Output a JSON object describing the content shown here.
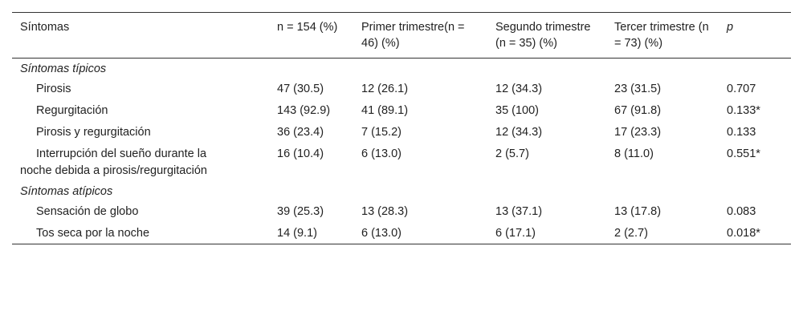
{
  "table": {
    "headers": {
      "symptoms": "Síntomas",
      "n_total": "n = 154 (%)",
      "first": "Primer trimestre(n = 46) (%)",
      "second": "Segundo trimestre (n = 35) (%)",
      "third": "Tercer trimestre (n = 73) (%)",
      "p": "p"
    },
    "section_typical": "Síntomas típicos",
    "section_atypical": "Síntomas atípicos",
    "rows": [
      {
        "symptom": "Pirosis",
        "n": "47 (30.5)",
        "first": "12 (26.1)",
        "second": "12 (34.3)",
        "third": "23 (31.5)",
        "p": "0.707"
      },
      {
        "symptom": "Regurgitación",
        "n": "143 (92.9)",
        "first": "41 (89.1)",
        "second": "35 (100)",
        "third": "67 (91.8)",
        "p": "0.133*"
      },
      {
        "symptom": "Pirosis y regurgitación",
        "n": "36 (23.4)",
        "first": "7 (15.2)",
        "second": "12 (34.3)",
        "third": "17 (23.3)",
        "p": "0.133"
      },
      {
        "symptom_line1": "Interrupción del sueño durante la",
        "symptom_line2": "noche debida a pirosis/regurgitación",
        "n": "16 (10.4)",
        "first": "6 (13.0)",
        "second": "2 (5.7)",
        "third": "8 (11.0)",
        "p": "0.551*"
      },
      {
        "symptom": "Sensación de globo",
        "n": "39 (25.3)",
        "first": "13 (28.3)",
        "second": "13 (37.1)",
        "third": "13 (17.8)",
        "p": "0.083"
      },
      {
        "symptom": "Tos seca por la noche",
        "n": "14 (9.1)",
        "first": "6 (13.0)",
        "second": "6 (17.1)",
        "third": "2 (2.7)",
        "p": "0.018*"
      }
    ]
  }
}
